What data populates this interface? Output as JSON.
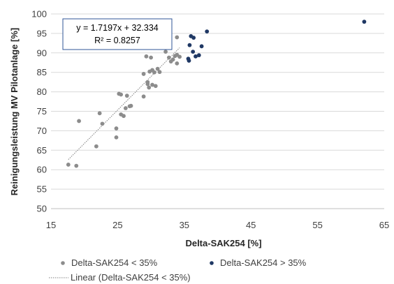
{
  "chart_data": {
    "type": "scatter",
    "xlabel": "Delta-SAK254 [%]",
    "ylabel": "Reinigungsleistung MV Pilotanlage [%]",
    "xlim": [
      15,
      65
    ],
    "ylim": [
      50,
      100
    ],
    "xticks": [
      15,
      25,
      35,
      45,
      55,
      65
    ],
    "yticks": [
      50,
      55,
      60,
      65,
      70,
      75,
      80,
      85,
      90,
      95,
      100
    ],
    "grid": "horizontal",
    "series": [
      {
        "name": "Delta-SAK254 < 35%",
        "color": "#8c8c8c",
        "points": [
          [
            17.6,
            61.3
          ],
          [
            18.8,
            61.0
          ],
          [
            19.2,
            72.5
          ],
          [
            21.8,
            66.0
          ],
          [
            22.3,
            74.5
          ],
          [
            22.7,
            71.8
          ],
          [
            24.8,
            70.6
          ],
          [
            24.8,
            68.3
          ],
          [
            25.2,
            79.5
          ],
          [
            25.5,
            79.3
          ],
          [
            25.5,
            74.2
          ],
          [
            25.9,
            73.8
          ],
          [
            26.2,
            75.8
          ],
          [
            26.4,
            79.0
          ],
          [
            26.8,
            76.3
          ],
          [
            27.0,
            76.4
          ],
          [
            28.9,
            78.8
          ],
          [
            28.9,
            84.6
          ],
          [
            29.3,
            89.1
          ],
          [
            29.5,
            82.5
          ],
          [
            29.5,
            82.0
          ],
          [
            29.7,
            81.1
          ],
          [
            29.8,
            85.2
          ],
          [
            30.0,
            88.8
          ],
          [
            30.2,
            81.8
          ],
          [
            30.2,
            85.6
          ],
          [
            30.5,
            85.0
          ],
          [
            30.7,
            81.5
          ],
          [
            31.0,
            85.9
          ],
          [
            31.3,
            85.1
          ],
          [
            32.2,
            90.3
          ],
          [
            32.7,
            88.8
          ],
          [
            33.0,
            87.8
          ],
          [
            33.3,
            88.3
          ],
          [
            33.9,
            87.3
          ],
          [
            33.6,
            89.2
          ],
          [
            33.9,
            89.5
          ],
          [
            33.9,
            94.0
          ],
          [
            34.3,
            89.0
          ]
        ]
      },
      {
        "name": "Delta-SAK254 > 35%",
        "color": "#1f3864",
        "points": [
          [
            35.6,
            88.5
          ],
          [
            35.7,
            88.0
          ],
          [
            35.8,
            92.0
          ],
          [
            36.0,
            94.3
          ],
          [
            36.3,
            90.3
          ],
          [
            36.4,
            93.9
          ],
          [
            36.7,
            89.1
          ],
          [
            37.2,
            89.4
          ],
          [
            37.6,
            91.7
          ],
          [
            38.4,
            95.5
          ],
          [
            62.0,
            98.0
          ]
        ]
      }
    ],
    "trendline": {
      "name": "Linear (Delta-SAK254 < 35%)",
      "slope": 1.7197,
      "intercept": 32.334,
      "x_range": [
        17.6,
        34.3
      ],
      "color": "#7f7f7f",
      "style": "dotted"
    },
    "annotation": {
      "equation": "y = 1.7197x + 32.334",
      "r_squared": "R² = 0.8257"
    },
    "legend_position": "bottom"
  }
}
